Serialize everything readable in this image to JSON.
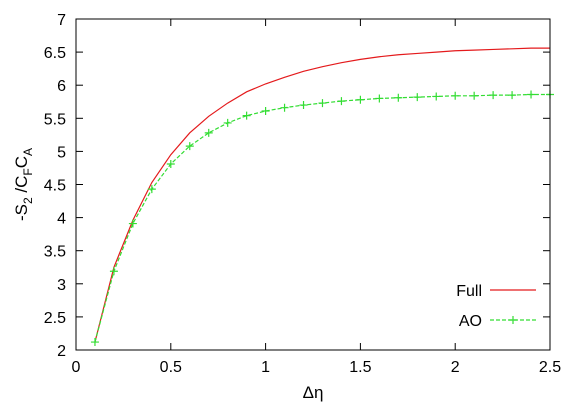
{
  "chart_data": {
    "type": "line",
    "xlabel": "Δη",
    "ylabel": {
      "parts": [
        {
          "text": "-S",
          "role": "base"
        },
        {
          "text": "2",
          "role": "sub"
        },
        {
          "text": " /C",
          "role": "base"
        },
        {
          "text": "F",
          "role": "sub"
        },
        {
          "text": "C",
          "role": "base"
        },
        {
          "text": "A",
          "role": "sub"
        }
      ]
    },
    "xlim": [
      0,
      2.5
    ],
    "ylim": [
      2,
      7
    ],
    "xticks": [
      0,
      0.5,
      1,
      1.5,
      2,
      2.5
    ],
    "xtick_labels": [
      "0",
      "0.5",
      "1",
      "1.5",
      "2",
      "2.5"
    ],
    "yticks": [
      2,
      2.5,
      3,
      3.5,
      4,
      4.5,
      5,
      5.5,
      6,
      6.5,
      7
    ],
    "ytick_labels": [
      "2",
      "2.5",
      "3",
      "3.5",
      "4",
      "4.5",
      "5",
      "5.5",
      "6",
      "6.5",
      "7"
    ],
    "grid": false,
    "legend_position": "bottom-right",
    "series": [
      {
        "name": "Full",
        "color": "#e41a1c",
        "style": "solid",
        "marker": "none",
        "x": [
          0.1,
          0.2,
          0.3,
          0.4,
          0.5,
          0.6,
          0.7,
          0.8,
          0.9,
          1.0,
          1.1,
          1.2,
          1.3,
          1.4,
          1.5,
          1.6,
          1.7,
          1.8,
          1.9,
          2.0,
          2.1,
          2.2,
          2.3,
          2.4,
          2.5
        ],
        "y": [
          2.12,
          3.25,
          3.96,
          4.53,
          4.95,
          5.28,
          5.53,
          5.73,
          5.9,
          6.02,
          6.12,
          6.21,
          6.28,
          6.34,
          6.39,
          6.43,
          6.46,
          6.48,
          6.5,
          6.52,
          6.53,
          6.54,
          6.55,
          6.56,
          6.56
        ]
      },
      {
        "name": "AO",
        "color": "#33dd33",
        "style": "dashed",
        "marker": "plus",
        "x": [
          0.1,
          0.2,
          0.3,
          0.4,
          0.5,
          0.6,
          0.7,
          0.8,
          0.9,
          1.0,
          1.1,
          1.2,
          1.3,
          1.4,
          1.5,
          1.6,
          1.7,
          1.8,
          1.9,
          2.0,
          2.1,
          2.2,
          2.3,
          2.4,
          2.5
        ],
        "y": [
          2.12,
          3.19,
          3.91,
          4.43,
          4.81,
          5.08,
          5.28,
          5.43,
          5.54,
          5.61,
          5.66,
          5.7,
          5.73,
          5.76,
          5.78,
          5.8,
          5.81,
          5.82,
          5.83,
          5.84,
          5.84,
          5.85,
          5.85,
          5.86,
          5.86
        ]
      }
    ]
  }
}
